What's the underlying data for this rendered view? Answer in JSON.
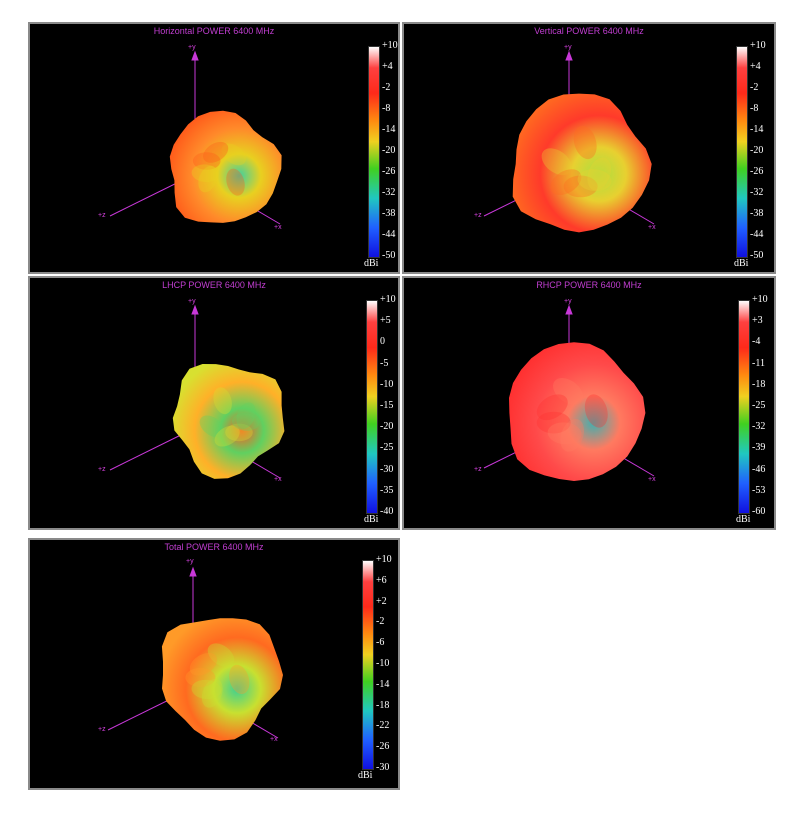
{
  "chart_data": [
    {
      "type": "3d-radiation-pattern",
      "title": "Horizontal POWER 6400  MHz",
      "axes": [
        "+y",
        "+x",
        "+z"
      ],
      "colorbar": {
        "unit": "dBi",
        "ticks": [
          "+10",
          "+4",
          "-2",
          "-8",
          "-14",
          "-20",
          "-26",
          "-32",
          "-38",
          "-44",
          "-50"
        ],
        "range": [
          -50,
          10
        ]
      },
      "colors": [
        "#ff8a2a",
        "#ff5a1a",
        "#e8d020",
        "#3fd0a0"
      ]
    },
    {
      "type": "3d-radiation-pattern",
      "title": "Vertical POWER 6400  MHz",
      "axes": [
        "+y",
        "+x",
        "+z"
      ],
      "colorbar": {
        "unit": "dBi",
        "ticks": [
          "+10",
          "+4",
          "-2",
          "-8",
          "-14",
          "-20",
          "-26",
          "-32",
          "-38",
          "-44",
          "-50"
        ],
        "range": [
          -50,
          10
        ]
      },
      "colors": [
        "#ff3a2a",
        "#ff6a20",
        "#e8d030",
        "#a8e040"
      ]
    },
    {
      "type": "3d-radiation-pattern",
      "title": "LHCP POWER 6400  MHz",
      "axes": [
        "+y",
        "+x",
        "+z"
      ],
      "colorbar": {
        "unit": "dBi",
        "ticks": [
          "+10",
          "+5",
          "0",
          "-5",
          "-10",
          "-15",
          "-20",
          "-25",
          "-30",
          "-35",
          "-40"
        ],
        "range": [
          -40,
          10
        ]
      },
      "colors": [
        "#ffb028",
        "#d8e030",
        "#60d060",
        "#ff5a20"
      ]
    },
    {
      "type": "3d-radiation-pattern",
      "title": "RHCP POWER 6400  MHz",
      "axes": [
        "+y",
        "+x",
        "+z"
      ],
      "colorbar": {
        "unit": "dBi",
        "ticks": [
          "+10",
          "+3",
          "-4",
          "-11",
          "-18",
          "-25",
          "-32",
          "-39",
          "-46",
          "-53",
          "-60"
        ],
        "range": [
          -60,
          10
        ]
      },
      "colors": [
        "#ff4a4a",
        "#ff3030",
        "#ff7a60",
        "#3fb0b0"
      ]
    },
    {
      "type": "3d-radiation-pattern",
      "title": "Total POWER 6400  MHz",
      "axes": [
        "+y",
        "+x",
        "+z"
      ],
      "colorbar": {
        "unit": "dBi",
        "ticks": [
          "+10",
          "+6",
          "+2",
          "-2",
          "-6",
          "-10",
          "-14",
          "-18",
          "-22",
          "-26",
          "-30"
        ],
        "range": [
          -30,
          10
        ]
      },
      "colors": [
        "#ff6a20",
        "#ff9a28",
        "#c8e030",
        "#40d090"
      ]
    }
  ]
}
